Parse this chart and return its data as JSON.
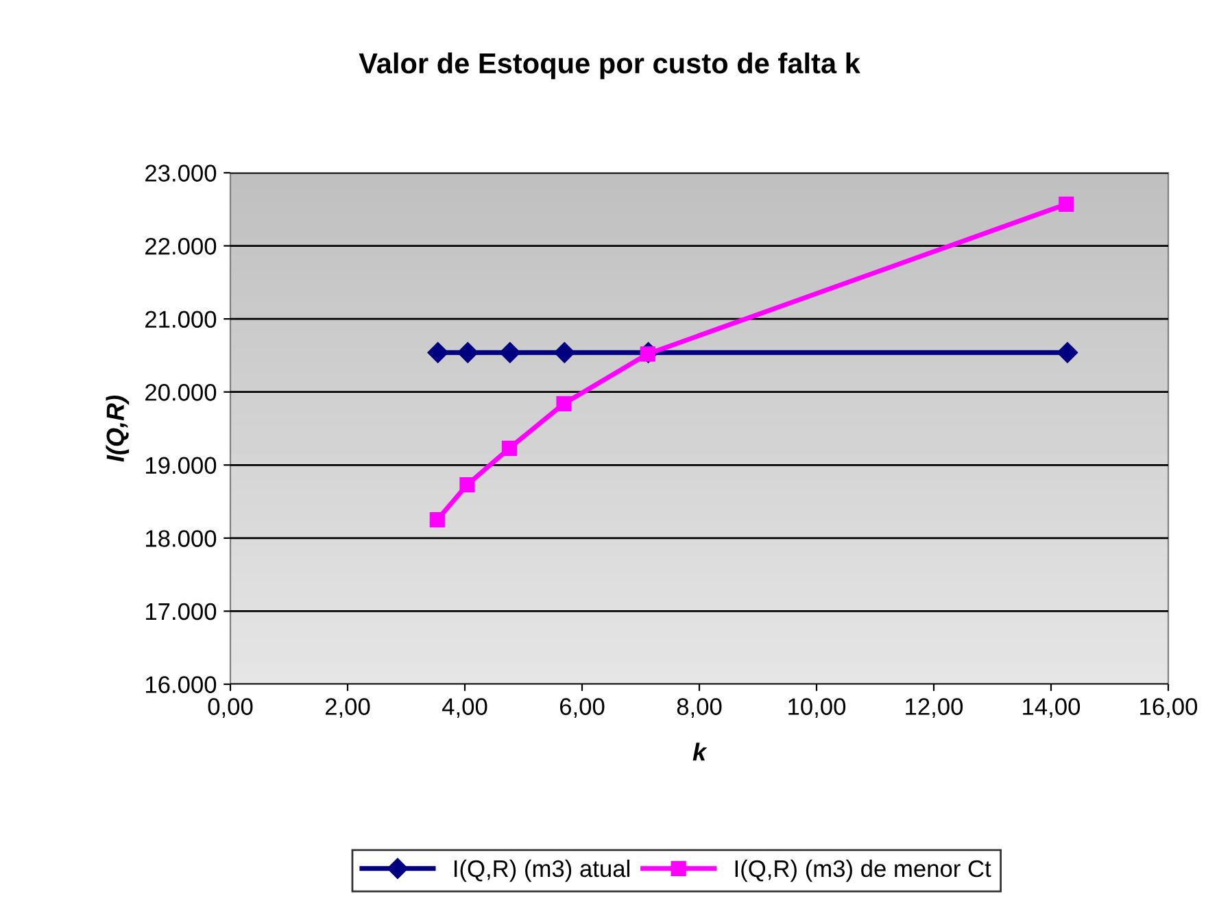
{
  "chart_data": {
    "type": "line",
    "title": "Valor de Estoque por custo de falta k",
    "xlabel": "k",
    "ylabel": "I(Q,R)",
    "xlim": [
      0,
      16
    ],
    "xticks": [
      {
        "value": 0,
        "label": "0,00"
      },
      {
        "value": 2,
        "label": "2,00"
      },
      {
        "value": 4,
        "label": "4,00"
      },
      {
        "value": 6,
        "label": "6,00"
      },
      {
        "value": 8,
        "label": "8,00"
      },
      {
        "value": 10,
        "label": "10,00"
      },
      {
        "value": 12,
        "label": "12,00"
      },
      {
        "value": 14,
        "label": "14,00"
      },
      {
        "value": 16,
        "label": "16,00"
      }
    ],
    "ylim": [
      16000,
      23000
    ],
    "yticks": [
      {
        "value": 16000,
        "label": "16.000"
      },
      {
        "value": 17000,
        "label": "17.000"
      },
      {
        "value": 18000,
        "label": "18.000"
      },
      {
        "value": 19000,
        "label": "19.000"
      },
      {
        "value": 20000,
        "label": "20.000"
      },
      {
        "value": 21000,
        "label": "21.000"
      },
      {
        "value": 22000,
        "label": "22.000"
      },
      {
        "value": 23000,
        "label": "23.000"
      }
    ],
    "grid": "y",
    "legend": "bottom",
    "series": [
      {
        "name": "I(Q,R) (m3) atual",
        "color": "#000080",
        "marker": "diamond",
        "x": [
          3.54,
          4.05,
          4.77,
          5.7,
          7.13,
          14.28
        ],
        "values": [
          20540,
          20540,
          20540,
          20540,
          20540,
          20540
        ]
      },
      {
        "name": "I(Q,R) (m3) de menor Ct",
        "color": "#ff00ff",
        "marker": "square",
        "x": [
          3.53,
          4.04,
          4.76,
          5.69,
          7.12,
          14.26
        ],
        "values": [
          18250,
          18730,
          19230,
          19840,
          20520,
          22570
        ]
      }
    ]
  }
}
